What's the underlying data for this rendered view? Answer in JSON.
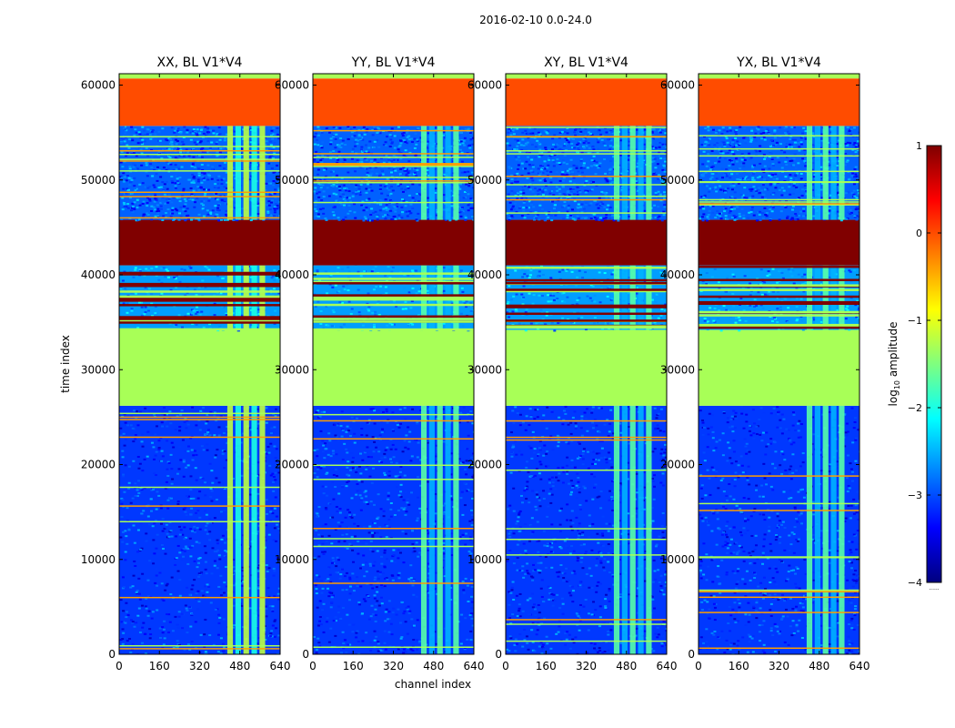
{
  "figure": {
    "suptitle": "2016-02-10 0.0-24.0"
  },
  "chart_data": {
    "type": "heatmap",
    "suptitle": "2016-02-10 0.0-24.0",
    "xlabel": "channel index",
    "ylabel": "time index",
    "xlim": [
      0,
      640
    ],
    "ylim": [
      0,
      61200
    ],
    "xticks": [
      0,
      160,
      320,
      480,
      640
    ],
    "xtick_labels": [
      "0",
      "160",
      "320",
      "480",
      "640"
    ],
    "yticks": [
      0,
      10000,
      20000,
      30000,
      40000,
      50000,
      60000
    ],
    "ytick_labels": [
      "0",
      "10000",
      "20000",
      "30000",
      "40000",
      "50000",
      "60000"
    ],
    "colorbar": {
      "label": "log10 amplitude",
      "label_main": "log",
      "label_sub": "10",
      "label_rest": " amplitude",
      "range": [
        -4,
        1
      ],
      "ticks": [
        1,
        0,
        -1,
        -2,
        -3,
        -4
      ],
      "tick_labels": [
        "1",
        "0",
        "−1",
        "−2",
        "−3",
        "−4"
      ],
      "colormap": "jet",
      "stops": [
        "#00007f",
        "#0000ff",
        "#007fff",
        "#00ffff",
        "#7fff7f",
        "#ffff00",
        "#ff7f00",
        "#ff0000",
        "#7f0000"
      ],
      "footer": "......"
    },
    "panels": [
      {
        "title": "XX, BL V1*V4"
      },
      {
        "title": "YY, BL V1*V4"
      },
      {
        "title": "XY, BL V1*V4"
      },
      {
        "title": "YX, BL V1*V4"
      }
    ],
    "time_blocks": [
      {
        "t0": 0,
        "t1": 26200,
        "value": -3.1,
        "texture": "noise"
      },
      {
        "t0": 26200,
        "t1": 34200,
        "value": -1.3,
        "texture": "flat"
      },
      {
        "t0": 34200,
        "t1": 41000,
        "value": -2.6,
        "texture": "striped"
      },
      {
        "t0": 41000,
        "t1": 45800,
        "value": 1.0,
        "texture": "flat"
      },
      {
        "t0": 45800,
        "t1": 55700,
        "value": -2.9,
        "texture": "noise"
      },
      {
        "t0": 55700,
        "t1": 60700,
        "value": 0.0,
        "texture": "flat"
      },
      {
        "t0": 60700,
        "t1": 61200,
        "value": -1.3,
        "texture": "flat"
      }
    ],
    "bright_channel_range": [
      430,
      590
    ],
    "bright_channel_value": -1.4
  }
}
